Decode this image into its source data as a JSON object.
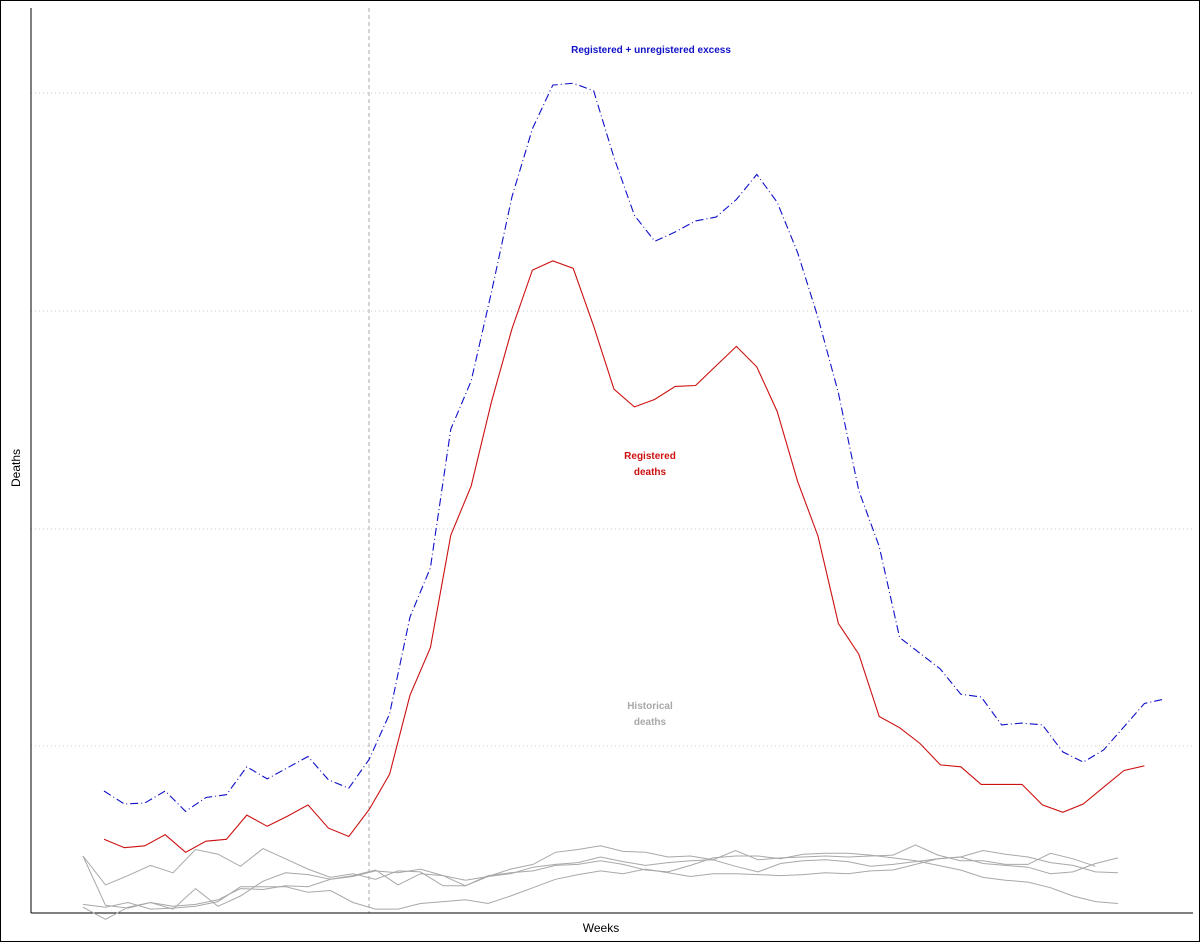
{
  "chart_data": {
    "type": "line",
    "xlabel": "Weeks",
    "ylabel": "Deaths",
    "grid": "horizontal dotted",
    "ylim": [
      0,
      1
    ],
    "colors": {
      "excess": "#1010C8",
      "registered": "#CC1010",
      "historical": "#A8A8A8",
      "vline": "#AAAAAA"
    },
    "annotations": {
      "excess": "Registered + unregistered excess",
      "registered_line1": "Registered",
      "registered_line2": "deaths",
      "historical_line1": "Historical",
      "historical_line2": "deaths"
    },
    "series": [
      {
        "key": "excess",
        "style": "dashdot",
        "values": [
          0.185,
          0.171,
          0.172,
          0.185,
          0.163,
          0.178,
          0.181,
          0.211,
          0.198,
          0.21,
          0.222,
          0.197,
          0.188,
          0.219,
          0.268,
          0.372,
          0.425,
          0.574,
          0.626,
          0.722,
          0.824,
          0.897,
          0.944,
          0.946,
          0.938,
          0.866,
          0.804,
          0.776,
          0.786,
          0.798,
          0.802,
          0.821,
          0.848,
          0.818,
          0.764,
          0.694,
          0.613,
          0.508,
          0.448,
          0.35,
          0.333,
          0.316,
          0.289,
          0.286,
          0.256,
          0.258,
          0.256,
          0.227,
          0.216,
          0.229,
          0.254,
          0.279,
          0.284
        ]
      },
      {
        "key": "registered",
        "style": "solid",
        "values": [
          0.133,
          0.124,
          0.126,
          0.138,
          0.119,
          0.131,
          0.133,
          0.159,
          0.147,
          0.158,
          0.17,
          0.145,
          0.136,
          0.165,
          0.203,
          0.288,
          0.339,
          0.46,
          0.513,
          0.604,
          0.682,
          0.745,
          0.755,
          0.747,
          0.685,
          0.617,
          0.598,
          0.606,
          0.62,
          0.621,
          0.642,
          0.663,
          0.641,
          0.593,
          0.518,
          0.459,
          0.365,
          0.332,
          0.265,
          0.253,
          0.236,
          0.213,
          0.211,
          0.192,
          0.192,
          0.192,
          0.17,
          0.162,
          0.171,
          0.189,
          0.207,
          0.212
        ]
      },
      {
        "key": "historical",
        "style": "solid",
        "values": [
          0.115,
          0.084,
          0.094,
          0.105,
          0.097,
          0.122,
          0.117,
          0.104,
          0.123,
          0.112,
          0.101,
          0.092,
          0.096,
          0.09,
          0.099,
          0.098,
          0.083,
          0.083,
          0.093,
          0.101,
          0.106,
          0.119,
          0.122,
          0.126,
          0.12,
          0.119,
          0.114,
          0.115,
          0.111,
          0.121,
          0.111,
          0.113,
          0.114,
          0.115,
          0.114,
          0.115,
          0.116,
          0.127,
          0.116,
          0.11,
          0.11,
          0.106,
          0.106,
          0.118,
          0.112,
          0.104
        ]
      },
      {
        "key": "historical",
        "style": "solid",
        "values": [
          0.115,
          0.062,
          0.059,
          0.065,
          0.058,
          0.08,
          0.061,
          0.072,
          0.088,
          0.097,
          0.095,
          0.09,
          0.094,
          0.1,
          0.084,
          0.096,
          0.094,
          0.089,
          0.093,
          0.096,
          0.103,
          0.106,
          0.108,
          0.114,
          0.109,
          0.105,
          0.108,
          0.11,
          0.111,
          0.104,
          0.098,
          0.107,
          0.11,
          0.111,
          0.109,
          0.104,
          0.106,
          0.109,
          0.112,
          0.114,
          0.121,
          0.117,
          0.114,
          0.108,
          0.105,
          0.098,
          0.097
        ]
      },
      {
        "key": "historical",
        "style": "solid",
        "values": [
          0.06,
          0.047,
          0.06,
          0.065,
          0.061,
          0.063,
          0.068,
          0.08,
          0.079,
          0.083,
          0.082,
          0.09,
          0.093,
          0.099,
          0.097,
          0.101,
          0.094,
          0.083,
          0.094,
          0.097,
          0.099,
          0.105,
          0.106,
          0.11,
          0.106,
          0.1,
          0.098,
          0.105,
          0.113,
          0.115,
          0.115,
          0.112,
          0.117,
          0.118,
          0.118,
          0.116,
          0.113,
          0.11,
          0.105,
          0.1,
          0.092,
          0.089,
          0.087,
          0.081,
          0.072,
          0.066,
          0.064
        ]
      },
      {
        "key": "historical",
        "style": "solid",
        "values": [
          0.063,
          0.06,
          0.065,
          0.058,
          0.059,
          0.061,
          0.066,
          0.082,
          0.082,
          0.082,
          0.076,
          0.078,
          0.065,
          0.058,
          0.058,
          0.064,
          0.066,
          0.068,
          0.064,
          0.072,
          0.081,
          0.09,
          0.095,
          0.099,
          0.096,
          0.101,
          0.097,
          0.093,
          0.096,
          0.096,
          0.095,
          0.094,
          0.095,
          0.097,
          0.096,
          0.099,
          0.1,
          0.106,
          0.112,
          0.114,
          0.107,
          0.105,
          0.103,
          0.096,
          0.098,
          0.107,
          0.113
        ]
      }
    ]
  }
}
